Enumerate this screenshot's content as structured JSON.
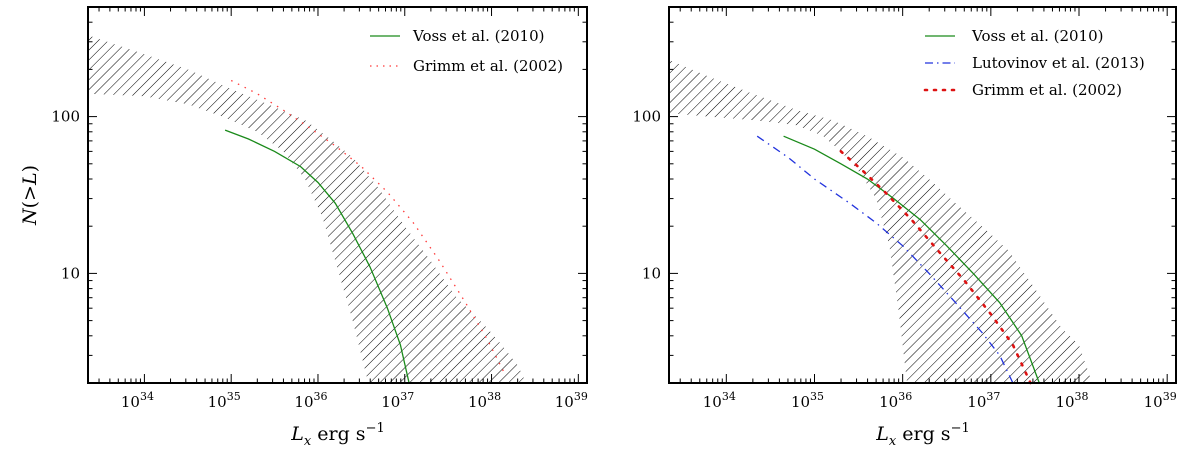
{
  "figure": {
    "panels": [
      {
        "ylabel": "N(>L)",
        "xlabel": "L_x erg s^-1",
        "xticks": [
          {
            "exp": 34,
            "base": "10",
            "sup": "34"
          },
          {
            "exp": 35,
            "base": "10",
            "sup": "35"
          },
          {
            "exp": 36,
            "base": "10",
            "sup": "36"
          },
          {
            "exp": 37,
            "base": "10",
            "sup": "37"
          },
          {
            "exp": 38,
            "base": "10",
            "sup": "38"
          },
          {
            "exp": 39,
            "base": "10",
            "sup": "39"
          }
        ],
        "yticks": [
          {
            "value": 10,
            "label": "10"
          },
          {
            "value": 100,
            "label": "100"
          }
        ],
        "legend": [
          {
            "label": "Voss et al. (2010)",
            "style": "solid",
            "color": "#1a8a1a"
          },
          {
            "label": "Grimm et al. (2002)",
            "style": "dotted",
            "color": "#ff3b3b"
          }
        ]
      },
      {
        "ylabel": "",
        "xlabel": "L_x erg s^-1",
        "xticks": [
          {
            "exp": 34,
            "base": "10",
            "sup": "34"
          },
          {
            "exp": 35,
            "base": "10",
            "sup": "35"
          },
          {
            "exp": 36,
            "base": "10",
            "sup": "36"
          },
          {
            "exp": 37,
            "base": "10",
            "sup": "37"
          },
          {
            "exp": 38,
            "base": "10",
            "sup": "38"
          },
          {
            "exp": 39,
            "base": "10",
            "sup": "39"
          }
        ],
        "yticks": [
          {
            "value": 10,
            "label": "10"
          },
          {
            "value": 100,
            "label": "100"
          }
        ],
        "legend": [
          {
            "label": "Voss et al. (2010)",
            "style": "solid",
            "color": "#1a8a1a"
          },
          {
            "label": "Lutovinov et al. (2013)",
            "style": "dashdot",
            "color": "#2233dd"
          },
          {
            "label": "Grimm et al. (2002)",
            "style": "dotted",
            "color": "#dd1111"
          }
        ]
      }
    ]
  },
  "chart_data": [
    {
      "type": "line",
      "xscale": "log",
      "yscale": "log",
      "xlim_log10": [
        33.35,
        39.1
      ],
      "ylim": [
        2,
        500
      ],
      "xlabel": "L_x erg s^-1",
      "ylabel": "N(>L)",
      "band": {
        "label": "",
        "upper": [
          [
            33.35,
            330
          ],
          [
            34.0,
            250
          ],
          [
            34.5,
            200
          ],
          [
            35.0,
            150
          ],
          [
            35.5,
            115
          ],
          [
            35.85,
            95
          ],
          [
            36.1,
            75
          ],
          [
            36.4,
            55
          ],
          [
            36.7,
            35
          ],
          [
            37.0,
            20
          ],
          [
            37.3,
            12
          ],
          [
            37.6,
            7
          ],
          [
            37.9,
            4.8
          ],
          [
            38.1,
            3.6
          ],
          [
            38.3,
            2.6
          ],
          [
            38.4,
            2
          ]
        ],
        "lower": [
          [
            33.35,
            140
          ],
          [
            34.0,
            135
          ],
          [
            34.5,
            120
          ],
          [
            34.9,
            100
          ],
          [
            35.3,
            80
          ],
          [
            35.6,
            60
          ],
          [
            35.85,
            40
          ],
          [
            36.05,
            23
          ],
          [
            36.2,
            12
          ],
          [
            36.4,
            5
          ],
          [
            36.5,
            3
          ],
          [
            36.58,
            2
          ]
        ]
      },
      "series": [
        {
          "name": "Voss et al. (2010)",
          "style": "solid",
          "color": "#1a8a1a",
          "points": [
            [
              34.93,
              82
            ],
            [
              35.2,
              72
            ],
            [
              35.5,
              60
            ],
            [
              35.8,
              48
            ],
            [
              36.0,
              38
            ],
            [
              36.2,
              28
            ],
            [
              36.4,
              18
            ],
            [
              36.6,
              11
            ],
            [
              36.8,
              6
            ],
            [
              36.95,
              3.5
            ],
            [
              37.05,
              2
            ]
          ]
        },
        {
          "name": "Grimm et al. (2002)",
          "style": "dotted",
          "color": "#ff3b3b",
          "points": [
            [
              35.0,
              170
            ],
            [
              35.3,
              140
            ],
            [
              35.6,
              110
            ],
            [
              35.9,
              85
            ],
            [
              36.2,
              65
            ],
            [
              36.5,
              48
            ],
            [
              36.8,
              33
            ],
            [
              37.1,
              21
            ],
            [
              37.4,
              12
            ],
            [
              37.7,
              6.5
            ],
            [
              37.95,
              3.8
            ],
            [
              38.15,
              2.3
            ]
          ]
        }
      ]
    },
    {
      "type": "line",
      "xscale": "log",
      "yscale": "log",
      "xlim_log10": [
        33.35,
        39.1
      ],
      "ylim": [
        2,
        500
      ],
      "xlabel": "L_x erg s^-1",
      "ylabel": "",
      "band": {
        "label": "",
        "upper": [
          [
            33.35,
            230
          ],
          [
            33.8,
            180
          ],
          [
            34.3,
            140
          ],
          [
            34.8,
            110
          ],
          [
            35.2,
            95
          ],
          [
            35.6,
            75
          ],
          [
            36.0,
            55
          ],
          [
            36.3,
            40
          ],
          [
            36.6,
            28
          ],
          [
            36.9,
            20
          ],
          [
            37.2,
            14
          ],
          [
            37.5,
            8
          ],
          [
            37.8,
            4.5
          ],
          [
            38.0,
            3.5
          ],
          [
            38.15,
            2
          ]
        ],
        "lower": [
          [
            33.35,
            105
          ],
          [
            33.8,
            100
          ],
          [
            34.3,
            95
          ],
          [
            34.8,
            88
          ],
          [
            35.1,
            75
          ],
          [
            35.3,
            60
          ],
          [
            35.5,
            45
          ],
          [
            35.7,
            30
          ],
          [
            35.85,
            15
          ],
          [
            35.95,
            6
          ],
          [
            36.05,
            2
          ]
        ]
      },
      "series": [
        {
          "name": "Voss et al. (2010)",
          "style": "solid",
          "color": "#1a8a1a",
          "points": [
            [
              34.65,
              75
            ],
            [
              35.0,
              62
            ],
            [
              35.3,
              50
            ],
            [
              35.6,
              40
            ],
            [
              35.9,
              30
            ],
            [
              36.2,
              22
            ],
            [
              36.5,
              15
            ],
            [
              36.8,
              10
            ],
            [
              37.1,
              6.5
            ],
            [
              37.35,
              4
            ],
            [
              37.55,
              2
            ]
          ]
        },
        {
          "name": "Lutovinov et al. (2013)",
          "style": "dashdot",
          "color": "#2233dd",
          "points": [
            [
              34.35,
              75
            ],
            [
              34.7,
              55
            ],
            [
              35.0,
              40
            ],
            [
              35.4,
              28
            ],
            [
              35.7,
              21
            ],
            [
              36.0,
              15
            ],
            [
              36.3,
              10
            ],
            [
              36.6,
              6.5
            ],
            [
              36.9,
              4.2
            ],
            [
              37.1,
              3
            ],
            [
              37.25,
              2
            ]
          ]
        },
        {
          "name": "Grimm et al. (2002)",
          "style": "dotted",
          "color": "#dd1111",
          "points": [
            [
              35.3,
              60
            ],
            [
              35.55,
              45
            ],
            [
              35.8,
              33
            ],
            [
              36.1,
              22
            ],
            [
              36.4,
              14
            ],
            [
              36.7,
              9
            ],
            [
              37.0,
              5.5
            ],
            [
              37.25,
              3.5
            ],
            [
              37.45,
              2
            ]
          ]
        }
      ]
    }
  ]
}
